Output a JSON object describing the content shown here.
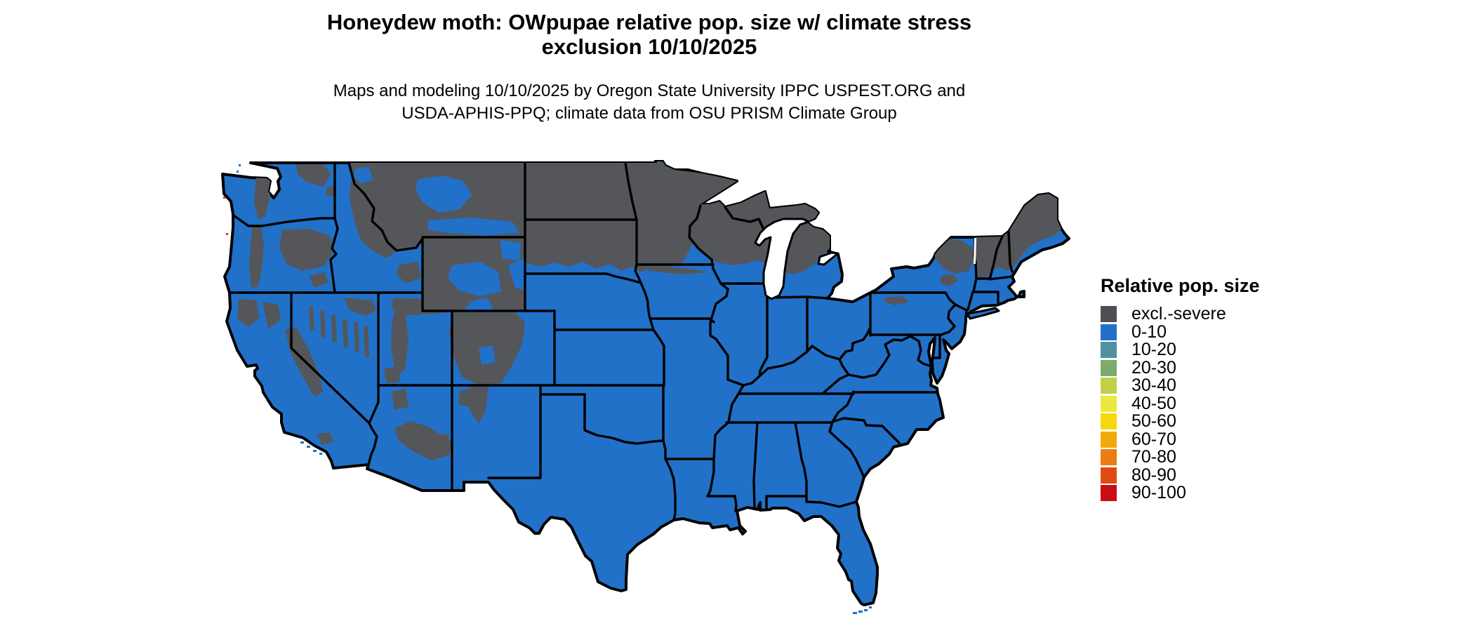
{
  "header": {
    "title_line1": "Honeydew moth: OWpupae relative pop. size w/ climate stress",
    "title_line2": "exclusion 10/10/2025",
    "subtitle_line1": "Maps and modeling 10/10/2025 by Oregon State University IPPC USPEST.ORG and",
    "subtitle_line2": "USDA-APHIS-PPQ; climate data from OSU PRISM Climate Group"
  },
  "legend": {
    "title": "Relative pop. size",
    "items": [
      {
        "label": "excl.-severe",
        "color": "#4E4F53"
      },
      {
        "label": "0-10",
        "color": "#2171C8"
      },
      {
        "label": "10-20",
        "color": "#4F919F"
      },
      {
        "label": "20-30",
        "color": "#7CAB6D"
      },
      {
        "label": "30-40",
        "color": "#BFD148"
      },
      {
        "label": "40-50",
        "color": "#EDE93C"
      },
      {
        "label": "50-60",
        "color": "#F8D70E"
      },
      {
        "label": "60-70",
        "color": "#F2A90B"
      },
      {
        "label": "70-80",
        "color": "#EA7E12"
      },
      {
        "label": "80-90",
        "color": "#E04B12"
      },
      {
        "label": "90-100",
        "color": "#C90D12"
      }
    ]
  },
  "map": {
    "land_color": "#2171C8",
    "exclusion_color": "#55565A",
    "water_color": "#FFFFFF",
    "border_color": "#000000",
    "region": "Continental United States"
  }
}
